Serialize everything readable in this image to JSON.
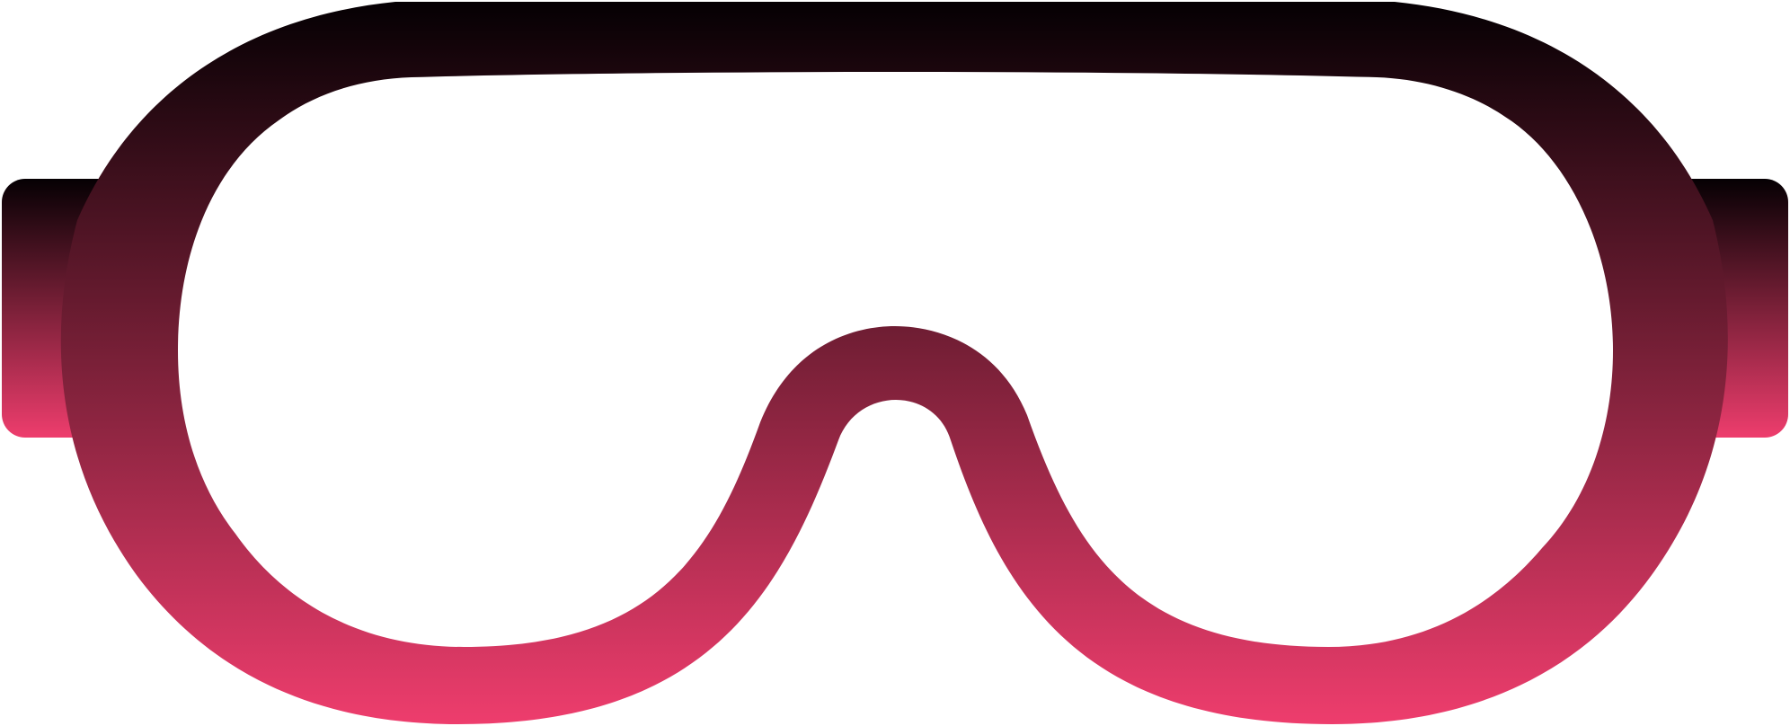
{
  "icon": {
    "name": "safety-goggles-icon",
    "gradient": {
      "top": "#050003",
      "middle": "#7a2038",
      "bottom": "#ee3d6d"
    },
    "background": "#ffffff"
  }
}
